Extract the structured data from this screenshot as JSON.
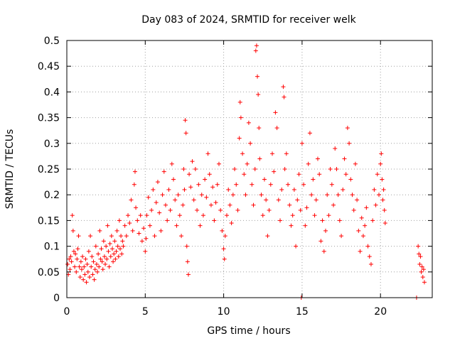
{
  "chart_data": {
    "type": "scatter",
    "title": "Day 083 of 2024, SRMTID for receiver welk",
    "xlabel": "GPS time / hours",
    "ylabel": "SRMTID / TECUs",
    "xlim": [
      0,
      23.3
    ],
    "ylim": [
      0,
      0.5
    ],
    "xticks": [
      0,
      5,
      10,
      15,
      20
    ],
    "yticks": [
      0,
      0.05,
      0.1,
      0.15,
      0.2,
      0.25,
      0.3,
      0.35,
      0.4,
      0.45,
      0.5
    ],
    "ytick_labels": [
      "0",
      "0.05",
      "0.1",
      "0.15",
      "0.2",
      "0.25",
      "0.3",
      "0.35",
      "0.4",
      "0.45",
      "0.5"
    ],
    "grid": true,
    "marker": "+",
    "color": "#ff0000",
    "series": [
      {
        "points": [
          [
            0.05,
            0.065
          ],
          [
            0.1,
            0.045
          ],
          [
            0.15,
            0.075
          ],
          [
            0.2,
            0.055
          ],
          [
            0.25,
            0.08
          ],
          [
            0.3,
            0.07
          ],
          [
            0.35,
            0.16
          ],
          [
            0.4,
            0.13
          ],
          [
            0.45,
            0.09
          ],
          [
            0.5,
            0.06
          ],
          [
            0.55,
            0.085
          ],
          [
            0.6,
            0.05
          ],
          [
            0.65,
            0.075
          ],
          [
            0.7,
            0.095
          ],
          [
            0.75,
            0.12
          ],
          [
            0.8,
            0.06
          ],
          [
            0.85,
            0.04
          ],
          [
            0.9,
            0.07
          ],
          [
            0.95,
            0.055
          ],
          [
            1.0,
            0.08
          ],
          [
            1.05,
            0.035
          ],
          [
            1.1,
            0.06
          ],
          [
            1.15,
            0.045
          ],
          [
            1.2,
            0.075
          ],
          [
            1.25,
            0.03
          ],
          [
            1.3,
            0.065
          ],
          [
            1.35,
            0.05
          ],
          [
            1.4,
            0.09
          ],
          [
            1.45,
            0.04
          ],
          [
            1.5,
            0.12
          ],
          [
            1.55,
            0.06
          ],
          [
            1.6,
            0.08
          ],
          [
            1.65,
            0.045
          ],
          [
            1.7,
            0.07
          ],
          [
            1.75,
            0.035
          ],
          [
            1.8,
            0.055
          ],
          [
            1.85,
            0.1
          ],
          [
            1.9,
            0.065
          ],
          [
            1.95,
            0.05
          ],
          [
            2.0,
            0.085
          ],
          [
            2.05,
            0.06
          ],
          [
            2.1,
            0.13
          ],
          [
            2.15,
            0.075
          ],
          [
            2.2,
            0.095
          ],
          [
            2.25,
            0.07
          ],
          [
            2.3,
            0.055
          ],
          [
            2.35,
            0.11
          ],
          [
            2.4,
            0.08
          ],
          [
            2.45,
            0.065
          ],
          [
            2.5,
            0.1
          ],
          [
            2.55,
            0.075
          ],
          [
            2.6,
            0.14
          ],
          [
            2.65,
            0.09
          ],
          [
            2.7,
            0.06
          ],
          [
            2.75,
            0.105
          ],
          [
            2.8,
            0.08
          ],
          [
            2.85,
            0.12
          ],
          [
            2.9,
            0.095
          ],
          [
            2.95,
            0.07
          ],
          [
            3.0,
            0.085
          ],
          [
            3.05,
            0.11
          ],
          [
            3.1,
            0.075
          ],
          [
            3.15,
            0.09
          ],
          [
            3.2,
            0.13
          ],
          [
            3.25,
            0.1
          ],
          [
            3.3,
            0.08
          ],
          [
            3.35,
            0.15
          ],
          [
            3.4,
            0.095
          ],
          [
            3.45,
            0.12
          ],
          [
            3.5,
            0.085
          ],
          [
            3.55,
            0.11
          ],
          [
            3.6,
            0.1
          ],
          [
            3.7,
            0.14
          ],
          [
            3.8,
            0.12
          ],
          [
            3.9,
            0.16
          ],
          [
            4.0,
            0.145
          ],
          [
            4.1,
            0.19
          ],
          [
            4.2,
            0.13
          ],
          [
            4.3,
            0.22
          ],
          [
            4.35,
            0.245
          ],
          [
            4.4,
            0.175
          ],
          [
            4.5,
            0.15
          ],
          [
            4.6,
            0.125
          ],
          [
            4.7,
            0.16
          ],
          [
            4.8,
            0.11
          ],
          [
            4.9,
            0.135
          ],
          [
            5.0,
            0.09
          ],
          [
            5.05,
            0.115
          ],
          [
            5.1,
            0.16
          ],
          [
            5.2,
            0.195
          ],
          [
            5.3,
            0.14
          ],
          [
            5.4,
            0.17
          ],
          [
            5.5,
            0.21
          ],
          [
            5.6,
            0.12
          ],
          [
            5.7,
            0.185
          ],
          [
            5.8,
            0.225
          ],
          [
            5.9,
            0.165
          ],
          [
            6.0,
            0.13
          ],
          [
            6.1,
            0.2
          ],
          [
            6.2,
            0.245
          ],
          [
            6.3,
            0.18
          ],
          [
            6.4,
            0.15
          ],
          [
            6.5,
            0.21
          ],
          [
            6.6,
            0.17
          ],
          [
            6.7,
            0.26
          ],
          [
            6.8,
            0.23
          ],
          [
            6.9,
            0.19
          ],
          [
            7.0,
            0.14
          ],
          [
            7.1,
            0.2
          ],
          [
            7.2,
            0.16
          ],
          [
            7.3,
            0.12
          ],
          [
            7.4,
            0.18
          ],
          [
            7.45,
            0.25
          ],
          [
            7.5,
            0.21
          ],
          [
            7.55,
            0.345
          ],
          [
            7.6,
            0.32
          ],
          [
            7.65,
            0.1
          ],
          [
            7.7,
            0.07
          ],
          [
            7.75,
            0.045
          ],
          [
            7.8,
            0.24
          ],
          [
            7.9,
            0.215
          ],
          [
            8.0,
            0.265
          ],
          [
            8.1,
            0.19
          ],
          [
            8.2,
            0.25
          ],
          [
            8.3,
            0.17
          ],
          [
            8.4,
            0.22
          ],
          [
            8.5,
            0.14
          ],
          [
            8.6,
            0.2
          ],
          [
            8.7,
            0.16
          ],
          [
            8.8,
            0.23
          ],
          [
            8.9,
            0.195
          ],
          [
            9.0,
            0.28
          ],
          [
            9.1,
            0.24
          ],
          [
            9.2,
            0.18
          ],
          [
            9.3,
            0.215
          ],
          [
            9.4,
            0.15
          ],
          [
            9.5,
            0.185
          ],
          [
            9.6,
            0.22
          ],
          [
            9.7,
            0.26
          ],
          [
            9.8,
            0.17
          ],
          [
            9.9,
            0.13
          ],
          [
            10.0,
            0.095
          ],
          [
            10.05,
            0.075
          ],
          [
            10.1,
            0.12
          ],
          [
            10.2,
            0.16
          ],
          [
            10.3,
            0.21
          ],
          [
            10.4,
            0.18
          ],
          [
            10.5,
            0.145
          ],
          [
            10.6,
            0.2
          ],
          [
            10.7,
            0.25
          ],
          [
            10.8,
            0.22
          ],
          [
            10.9,
            0.17
          ],
          [
            11.0,
            0.31
          ],
          [
            11.05,
            0.38
          ],
          [
            11.1,
            0.35
          ],
          [
            11.2,
            0.28
          ],
          [
            11.3,
            0.24
          ],
          [
            11.4,
            0.2
          ],
          [
            11.5,
            0.26
          ],
          [
            11.6,
            0.34
          ],
          [
            11.7,
            0.3
          ],
          [
            11.8,
            0.22
          ],
          [
            11.9,
            0.18
          ],
          [
            12.0,
            0.25
          ],
          [
            12.05,
            0.48
          ],
          [
            12.1,
            0.49
          ],
          [
            12.15,
            0.43
          ],
          [
            12.2,
            0.395
          ],
          [
            12.25,
            0.33
          ],
          [
            12.3,
            0.27
          ],
          [
            12.4,
            0.2
          ],
          [
            12.5,
            0.16
          ],
          [
            12.6,
            0.23
          ],
          [
            12.7,
            0.19
          ],
          [
            12.8,
            0.12
          ],
          [
            12.9,
            0.17
          ],
          [
            13.0,
            0.22
          ],
          [
            13.1,
            0.28
          ],
          [
            13.2,
            0.245
          ],
          [
            13.3,
            0.36
          ],
          [
            13.4,
            0.33
          ],
          [
            13.5,
            0.19
          ],
          [
            13.6,
            0.15
          ],
          [
            13.7,
            0.21
          ],
          [
            13.8,
            0.41
          ],
          [
            13.85,
            0.39
          ],
          [
            13.9,
            0.25
          ],
          [
            14.0,
            0.28
          ],
          [
            14.1,
            0.22
          ],
          [
            14.2,
            0.18
          ],
          [
            14.3,
            0.14
          ],
          [
            14.4,
            0.16
          ],
          [
            14.5,
            0.21
          ],
          [
            14.6,
            0.1
          ],
          [
            14.7,
            0.19
          ],
          [
            14.8,
            0.24
          ],
          [
            14.9,
            0.17
          ],
          [
            14.95,
            0.0
          ],
          [
            15.0,
            0.3
          ],
          [
            15.1,
            0.22
          ],
          [
            15.2,
            0.14
          ],
          [
            15.3,
            0.175
          ],
          [
            15.4,
            0.26
          ],
          [
            15.5,
            0.32
          ],
          [
            15.6,
            0.2
          ],
          [
            15.7,
            0.23
          ],
          [
            15.8,
            0.16
          ],
          [
            15.9,
            0.19
          ],
          [
            16.0,
            0.27
          ],
          [
            16.1,
            0.24
          ],
          [
            16.2,
            0.11
          ],
          [
            16.3,
            0.15
          ],
          [
            16.4,
            0.09
          ],
          [
            16.5,
            0.13
          ],
          [
            16.6,
            0.2
          ],
          [
            16.7,
            0.16
          ],
          [
            16.8,
            0.25
          ],
          [
            16.9,
            0.22
          ],
          [
            17.0,
            0.18
          ],
          [
            17.1,
            0.29
          ],
          [
            17.2,
            0.25
          ],
          [
            17.3,
            0.2
          ],
          [
            17.4,
            0.15
          ],
          [
            17.5,
            0.12
          ],
          [
            17.6,
            0.21
          ],
          [
            17.7,
            0.27
          ],
          [
            17.8,
            0.24
          ],
          [
            17.9,
            0.33
          ],
          [
            18.0,
            0.3
          ],
          [
            18.1,
            0.23
          ],
          [
            18.2,
            0.2
          ],
          [
            18.3,
            0.17
          ],
          [
            18.4,
            0.26
          ],
          [
            18.5,
            0.19
          ],
          [
            18.6,
            0.13
          ],
          [
            18.7,
            0.09
          ],
          [
            18.8,
            0.155
          ],
          [
            18.9,
            0.12
          ],
          [
            19.0,
            0.14
          ],
          [
            19.1,
            0.175
          ],
          [
            19.2,
            0.1
          ],
          [
            19.3,
            0.08
          ],
          [
            19.4,
            0.065
          ],
          [
            19.5,
            0.15
          ],
          [
            19.6,
            0.21
          ],
          [
            19.7,
            0.18
          ],
          [
            19.8,
            0.24
          ],
          [
            19.9,
            0.2
          ],
          [
            20.0,
            0.26
          ],
          [
            20.05,
            0.28
          ],
          [
            20.1,
            0.23
          ],
          [
            20.15,
            0.19
          ],
          [
            20.2,
            0.21
          ],
          [
            20.25,
            0.17
          ],
          [
            20.3,
            0.145
          ],
          [
            22.3,
            0.0
          ],
          [
            22.4,
            0.1
          ],
          [
            22.45,
            0.085
          ],
          [
            22.5,
            0.065
          ],
          [
            22.55,
            0.08
          ],
          [
            22.6,
            0.05
          ],
          [
            22.65,
            0.06
          ],
          [
            22.7,
            0.04
          ],
          [
            22.75,
            0.055
          ],
          [
            22.8,
            0.03
          ]
        ]
      }
    ]
  }
}
